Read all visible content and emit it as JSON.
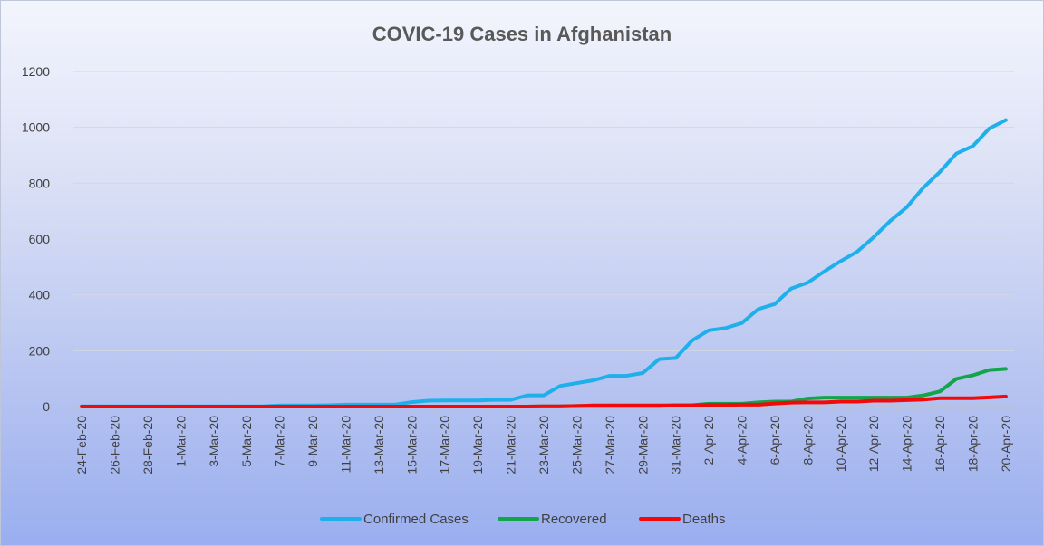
{
  "chart_data": {
    "type": "line",
    "title": "COVIC-19 Cases in Afghanistan",
    "xlabel": "",
    "ylabel": "",
    "ylim": [
      0,
      1200
    ],
    "yticks": [
      0,
      200,
      400,
      600,
      800,
      1000,
      1200
    ],
    "grid": true,
    "legend_position": "bottom",
    "x": [
      "24-Feb-20",
      "25-Feb-20",
      "26-Feb-20",
      "27-Feb-20",
      "28-Feb-20",
      "29-Feb-20",
      "1-Mar-20",
      "2-Mar-20",
      "3-Mar-20",
      "4-Mar-20",
      "5-Mar-20",
      "6-Mar-20",
      "7-Mar-20",
      "8-Mar-20",
      "9-Mar-20",
      "10-Mar-20",
      "11-Mar-20",
      "12-Mar-20",
      "13-Mar-20",
      "14-Mar-20",
      "15-Mar-20",
      "16-Mar-20",
      "17-Mar-20",
      "18-Mar-20",
      "19-Mar-20",
      "20-Mar-20",
      "21-Mar-20",
      "22-Mar-20",
      "23-Mar-20",
      "24-Mar-20",
      "25-Mar-20",
      "26-Mar-20",
      "27-Mar-20",
      "28-Mar-20",
      "29-Mar-20",
      "30-Mar-20",
      "31-Mar-20",
      "1-Apr-20",
      "2-Apr-20",
      "3-Apr-20",
      "4-Apr-20",
      "5-Apr-20",
      "6-Apr-20",
      "7-Apr-20",
      "8-Apr-20",
      "9-Apr-20",
      "10-Apr-20",
      "11-Apr-20",
      "12-Apr-20",
      "13-Apr-20",
      "14-Apr-20",
      "15-Apr-20",
      "16-Apr-20",
      "17-Apr-20",
      "18-Apr-20",
      "19-Apr-20",
      "20-Apr-20"
    ],
    "xtick_labels": [
      "24-Feb-20",
      "26-Feb-20",
      "28-Feb-20",
      "1-Mar-20",
      "3-Mar-20",
      "5-Mar-20",
      "7-Mar-20",
      "9-Mar-20",
      "11-Mar-20",
      "13-Mar-20",
      "15-Mar-20",
      "17-Mar-20",
      "19-Mar-20",
      "21-Mar-20",
      "23-Mar-20",
      "25-Mar-20",
      "27-Mar-20",
      "29-Mar-20",
      "31-Mar-20",
      "2-Apr-20",
      "4-Apr-20",
      "6-Apr-20",
      "8-Apr-20",
      "10-Apr-20",
      "12-Apr-20",
      "14-Apr-20",
      "16-Apr-20",
      "18-Apr-20",
      "20-Apr-20"
    ],
    "series": [
      {
        "name": "Confirmed Cases",
        "color": "#1fb0ec",
        "values": [
          1,
          1,
          1,
          1,
          1,
          1,
          1,
          1,
          1,
          1,
          1,
          1,
          4,
          4,
          4,
          5,
          7,
          7,
          7,
          7,
          16,
          21,
          22,
          22,
          22,
          24,
          24,
          40,
          40,
          74,
          84,
          94,
          110,
          110,
          120,
          170,
          174,
          237,
          273,
          281,
          299,
          349,
          367,
          423,
          444,
          484,
          521,
          555,
          607,
          665,
          714,
          784,
          840,
          906,
          933,
          996,
          1026
        ]
      },
      {
        "name": "Recovered",
        "color": "#12a54a",
        "values": [
          0,
          0,
          0,
          0,
          0,
          0,
          0,
          0,
          0,
          0,
          0,
          0,
          0,
          0,
          0,
          0,
          0,
          0,
          0,
          0,
          0,
          0,
          0,
          0,
          0,
          0,
          0,
          0,
          1,
          1,
          2,
          2,
          2,
          2,
          2,
          2,
          5,
          5,
          10,
          10,
          10,
          15,
          18,
          18,
          29,
          32,
          32,
          32,
          32,
          32,
          32,
          40,
          54,
          99,
          112,
          131,
          135
        ]
      },
      {
        "name": "Deaths",
        "color": "#f20a0a",
        "values": [
          0,
          0,
          0,
          0,
          0,
          0,
          0,
          0,
          0,
          0,
          0,
          0,
          0,
          0,
          0,
          0,
          0,
          0,
          0,
          0,
          0,
          0,
          0,
          0,
          0,
          0,
          0,
          0,
          1,
          1,
          2,
          4,
          4,
          4,
          4,
          4,
          4,
          4,
          6,
          6,
          7,
          7,
          11,
          14,
          15,
          15,
          18,
          18,
          21,
          21,
          23,
          25,
          30,
          30,
          30,
          33,
          36
        ]
      }
    ]
  }
}
